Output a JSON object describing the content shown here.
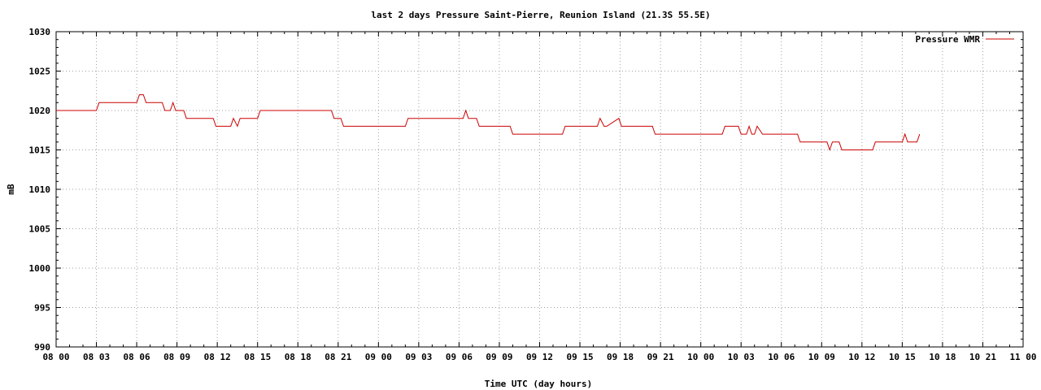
{
  "chart_data": {
    "type": "line",
    "title": "last 2 days Pressure Saint-Pierre, Reunion Island (21.3S 55.5E)",
    "xlabel": "Time UTC (day hours)",
    "ylabel": "mB",
    "ylim": [
      990,
      1030
    ],
    "yticks": [
      "990",
      "995",
      "1000",
      "1005",
      "1010",
      "1015",
      "1020",
      "1025",
      "1030"
    ],
    "xlim_hours": [
      0,
      72
    ],
    "xticks": [
      "08 00",
      "08 03",
      "08 06",
      "08 09",
      "08 12",
      "08 15",
      "08 18",
      "08 21",
      "09 00",
      "09 03",
      "09 06",
      "09 09",
      "09 12",
      "09 15",
      "09 18",
      "09 21",
      "10 00",
      "10 03",
      "10 06",
      "10 09",
      "10 12",
      "10 15",
      "10 18",
      "10 21",
      "11 00"
    ],
    "grid": true,
    "legend_position": "top-right",
    "series": [
      {
        "name": "Pressure WMR",
        "color": "#cc0000",
        "x": [
          0,
          3,
          3.2,
          6,
          6.2,
          6.5,
          6.7,
          7.9,
          8.1,
          8.5,
          8.7,
          8.9,
          9.1,
          9.5,
          9.7,
          11.7,
          11.9,
          13.0,
          13.2,
          13.5,
          13.7,
          15.0,
          15.2,
          20.5,
          20.7,
          21.2,
          21.4,
          26.0,
          26.2,
          30.3,
          30.5,
          30.7,
          30.9,
          31.3,
          31.5,
          33.8,
          34.0,
          37.7,
          37.9,
          40.3,
          40.5,
          40.8,
          41.0,
          41.9,
          42.1,
          42.3,
          42.5,
          44.4,
          44.6,
          49.6,
          49.8,
          50.8,
          51.0,
          51.2,
          51.4,
          51.6,
          51.8,
          52.0,
          52.2,
          52.6,
          52.8,
          53.0,
          53.2,
          55.2,
          55.4,
          57.4,
          57.6,
          57.8,
          58.0,
          58.3,
          58.5,
          60.8,
          61.0,
          63.0,
          63.2,
          63.4,
          63.6,
          64.1,
          64.3
        ],
        "y": [
          1020,
          1020,
          1021,
          1021,
          1022,
          1022,
          1021,
          1021,
          1020,
          1020,
          1021,
          1020,
          1020,
          1020,
          1019,
          1019,
          1018,
          1018,
          1019,
          1018,
          1019,
          1019,
          1020,
          1020,
          1019,
          1019,
          1018,
          1018,
          1019,
          1019,
          1020,
          1019,
          1019,
          1019,
          1018,
          1018,
          1017,
          1017,
          1018,
          1018,
          1019,
          1018,
          1018,
          1019,
          1018,
          1018,
          1018,
          1018,
          1017,
          1017,
          1018,
          1018,
          1017,
          1017,
          1017,
          1018,
          1017,
          1017,
          1018,
          1017,
          1017,
          1017,
          1017,
          1017,
          1016,
          1016,
          1015,
          1016,
          1016,
          1016,
          1015,
          1015,
          1016,
          1016,
          1017,
          1016,
          1016,
          1016,
          1017
        ]
      }
    ]
  }
}
